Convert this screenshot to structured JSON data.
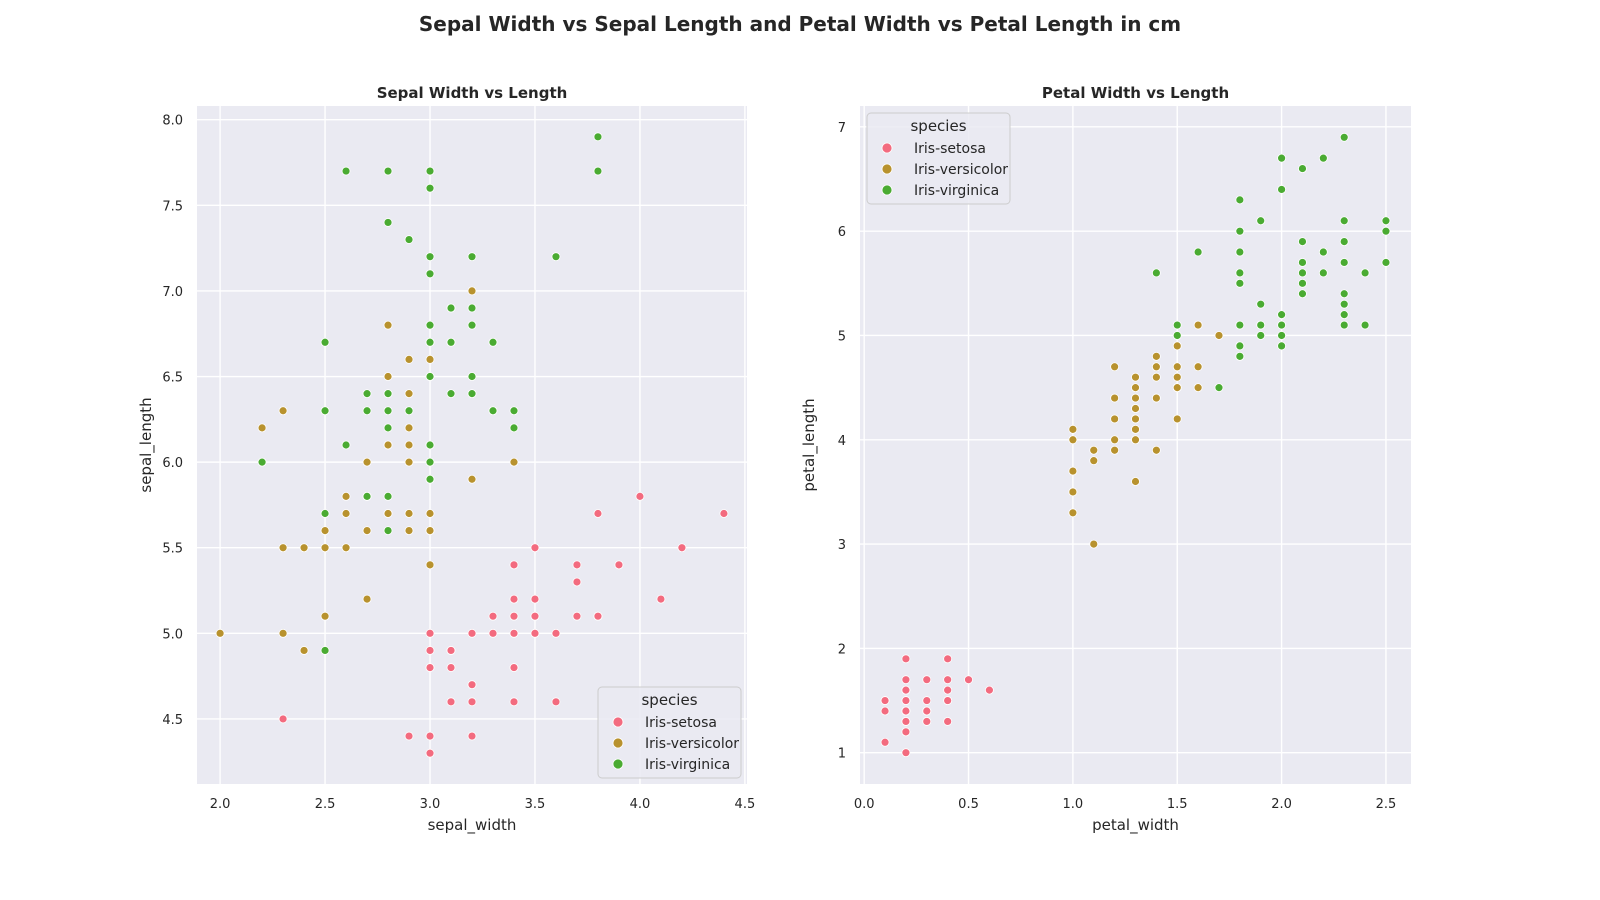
{
  "figure": {
    "title": "Sepal Width vs Sepal Length and Petal Width vs Petal Length in cm"
  },
  "chart_data": [
    {
      "type": "scatter",
      "title": "Sepal Width vs Length",
      "xlabel": "sepal_width",
      "ylabel": "sepal_length",
      "xlim": [
        1.89,
        4.51
      ],
      "ylim": [
        4.12,
        8.08
      ],
      "xticks": [
        2.0,
        2.5,
        3.0,
        3.5,
        4.0,
        4.5
      ],
      "yticks": [
        4.5,
        5.0,
        5.5,
        6.0,
        6.5,
        7.0,
        7.5,
        8.0
      ],
      "tick_decimals": 1,
      "grid": true,
      "legend": {
        "title": "species",
        "placement": "lower-right"
      },
      "series": [
        {
          "name": "Iris-setosa",
          "color": "#f36b7f",
          "x": [
            3.5,
            3.0,
            3.2,
            3.1,
            3.6,
            3.9,
            3.4,
            3.4,
            2.9,
            3.1,
            3.7,
            3.4,
            3.0,
            3.0,
            4.0,
            4.4,
            3.9,
            3.5,
            3.8,
            3.8,
            3.4,
            3.7,
            3.6,
            3.3,
            3.4,
            3.0,
            3.4,
            3.5,
            3.4,
            3.2,
            3.1,
            3.4,
            4.1,
            4.2,
            3.1,
            3.2,
            3.5,
            3.1,
            3.0,
            3.4,
            3.5,
            2.3,
            3.2,
            3.5,
            3.8,
            3.0,
            3.8,
            3.2,
            3.7,
            3.3
          ],
          "y": [
            5.1,
            4.9,
            4.7,
            4.6,
            5.0,
            5.4,
            4.6,
            5.0,
            4.4,
            4.9,
            5.4,
            4.8,
            4.8,
            4.3,
            5.8,
            5.7,
            5.4,
            5.1,
            5.7,
            5.1,
            5.4,
            5.1,
            4.6,
            5.1,
            4.8,
            5.0,
            5.0,
            5.2,
            5.2,
            4.7,
            4.8,
            5.4,
            5.2,
            5.5,
            4.9,
            5.0,
            5.5,
            4.9,
            4.4,
            5.1,
            5.0,
            4.5,
            4.4,
            5.0,
            5.1,
            4.8,
            5.1,
            4.6,
            5.3,
            5.0
          ]
        },
        {
          "name": "Iris-versicolor",
          "color": "#b8922e",
          "x": [
            3.2,
            3.2,
            3.1,
            2.3,
            2.8,
            2.8,
            3.3,
            2.4,
            2.9,
            2.7,
            2.0,
            3.0,
            2.2,
            2.9,
            2.9,
            3.1,
            3.0,
            2.7,
            2.2,
            2.5,
            3.2,
            2.8,
            2.5,
            2.8,
            2.9,
            3.0,
            2.8,
            3.0,
            2.9,
            2.6,
            2.4,
            2.4,
            2.7,
            2.7,
            3.0,
            3.4,
            3.1,
            2.3,
            3.0,
            2.5,
            2.6,
            3.0,
            2.6,
            2.3,
            2.7,
            3.0,
            2.9,
            2.9,
            2.5,
            2.8
          ],
          "y": [
            7.0,
            6.4,
            6.9,
            5.5,
            6.5,
            5.7,
            6.3,
            4.9,
            6.6,
            5.2,
            5.0,
            5.9,
            6.0,
            6.1,
            5.6,
            6.7,
            5.6,
            5.8,
            6.2,
            5.6,
            5.9,
            6.1,
            6.3,
            6.1,
            6.4,
            6.6,
            6.8,
            6.7,
            6.0,
            5.7,
            5.5,
            5.5,
            5.8,
            6.0,
            5.4,
            6.0,
            6.7,
            6.3,
            5.6,
            5.5,
            5.5,
            6.1,
            5.8,
            5.0,
            5.6,
            5.7,
            5.7,
            6.2,
            5.1,
            5.7
          ]
        },
        {
          "name": "Iris-virginica",
          "color": "#4aab32",
          "x": [
            3.3,
            2.7,
            3.0,
            2.9,
            3.0,
            3.0,
            2.5,
            2.9,
            2.5,
            3.6,
            3.2,
            2.7,
            3.0,
            2.5,
            2.8,
            3.2,
            3.0,
            3.8,
            2.6,
            2.2,
            3.2,
            2.8,
            2.8,
            2.7,
            3.3,
            3.2,
            2.8,
            3.0,
            2.8,
            3.0,
            2.8,
            3.8,
            2.8,
            2.8,
            2.6,
            3.0,
            3.4,
            3.1,
            3.0,
            3.1,
            3.1,
            3.1,
            2.7,
            3.2,
            3.3,
            3.0,
            2.5,
            3.0,
            3.4,
            3.0
          ],
          "y": [
            6.3,
            5.8,
            7.1,
            6.3,
            6.5,
            7.6,
            4.9,
            7.3,
            6.7,
            7.2,
            6.5,
            6.4,
            6.8,
            5.7,
            5.8,
            6.4,
            6.5,
            7.7,
            7.7,
            6.0,
            6.9,
            5.6,
            7.7,
            6.3,
            6.7,
            7.2,
            6.2,
            6.1,
            6.4,
            7.2,
            7.4,
            7.9,
            6.4,
            6.3,
            6.1,
            7.7,
            6.3,
            6.4,
            6.0,
            6.9,
            6.7,
            6.9,
            5.8,
            6.8,
            6.7,
            6.7,
            6.3,
            6.5,
            6.2,
            5.9
          ]
        }
      ]
    },
    {
      "type": "scatter",
      "title": "Petal Width vs Length",
      "xlabel": "petal_width",
      "ylabel": "petal_length",
      "xlim": [
        -0.02,
        2.62
      ],
      "ylim": [
        0.7,
        7.2
      ],
      "xticks": [
        0.0,
        0.5,
        1.0,
        1.5,
        2.0,
        2.5
      ],
      "yticks": [
        1,
        2,
        3,
        4,
        5,
        6,
        7
      ],
      "tick_decimals": [
        1,
        0
      ],
      "grid": true,
      "legend": {
        "title": "species",
        "placement": "upper-left"
      },
      "series": [
        {
          "name": "Iris-setosa",
          "color": "#f36b7f",
          "x": [
            0.2,
            0.2,
            0.2,
            0.2,
            0.2,
            0.4,
            0.3,
            0.2,
            0.2,
            0.1,
            0.2,
            0.2,
            0.1,
            0.1,
            0.2,
            0.4,
            0.4,
            0.3,
            0.3,
            0.3,
            0.2,
            0.4,
            0.2,
            0.5,
            0.2,
            0.2,
            0.4,
            0.2,
            0.2,
            0.2,
            0.2,
            0.4,
            0.1,
            0.2,
            0.1,
            0.2,
            0.2,
            0.1,
            0.2,
            0.2,
            0.3,
            0.3,
            0.2,
            0.6,
            0.4,
            0.3,
            0.2,
            0.2,
            0.2,
            0.2
          ],
          "y": [
            1.4,
            1.4,
            1.3,
            1.5,
            1.4,
            1.7,
            1.4,
            1.5,
            1.4,
            1.5,
            1.5,
            1.6,
            1.4,
            1.1,
            1.2,
            1.5,
            1.3,
            1.4,
            1.7,
            1.5,
            1.7,
            1.5,
            1.0,
            1.7,
            1.9,
            1.6,
            1.6,
            1.5,
            1.4,
            1.6,
            1.6,
            1.5,
            1.5,
            1.4,
            1.5,
            1.2,
            1.3,
            1.5,
            1.3,
            1.5,
            1.3,
            1.3,
            1.3,
            1.6,
            1.9,
            1.4,
            1.6,
            1.4,
            1.5,
            1.4
          ]
        },
        {
          "name": "Iris-versicolor",
          "color": "#b8922e",
          "x": [
            1.4,
            1.5,
            1.5,
            1.3,
            1.5,
            1.3,
            1.6,
            1.0,
            1.3,
            1.4,
            1.0,
            1.5,
            1.0,
            1.4,
            1.3,
            1.4,
            1.5,
            1.0,
            1.5,
            1.1,
            1.8,
            1.3,
            1.5,
            1.2,
            1.3,
            1.4,
            1.4,
            1.7,
            1.5,
            1.0,
            1.1,
            1.0,
            1.2,
            1.6,
            1.5,
            1.6,
            1.5,
            1.3,
            1.3,
            1.3,
            1.2,
            1.4,
            1.2,
            1.0,
            1.3,
            1.2,
            1.3,
            1.3,
            1.1,
            1.3
          ],
          "y": [
            4.7,
            4.5,
            4.9,
            4.0,
            4.6,
            4.5,
            4.7,
            3.3,
            4.6,
            3.9,
            3.5,
            4.2,
            4.0,
            4.7,
            3.6,
            4.4,
            4.5,
            4.1,
            4.5,
            3.9,
            4.8,
            4.0,
            4.9,
            4.7,
            4.3,
            4.4,
            4.8,
            5.0,
            4.5,
            3.5,
            3.8,
            3.7,
            3.9,
            5.1,
            4.5,
            4.5,
            4.7,
            4.4,
            4.1,
            4.0,
            4.4,
            4.6,
            4.0,
            3.3,
            4.2,
            4.2,
            4.2,
            4.3,
            3.0,
            4.1
          ]
        },
        {
          "name": "Iris-virginica",
          "color": "#4aab32",
          "x": [
            2.5,
            1.9,
            2.1,
            1.8,
            2.2,
            2.1,
            1.7,
            1.8,
            1.8,
            2.5,
            2.0,
            1.9,
            2.1,
            2.0,
            2.4,
            2.3,
            1.8,
            2.2,
            2.3,
            1.5,
            2.3,
            2.0,
            2.0,
            1.8,
            2.1,
            1.8,
            1.8,
            1.8,
            2.1,
            1.6,
            1.9,
            2.0,
            2.2,
            1.5,
            1.4,
            2.3,
            2.4,
            1.8,
            1.8,
            2.1,
            2.4,
            2.3,
            1.9,
            2.3,
            2.5,
            2.3,
            1.9,
            2.0,
            2.3,
            1.8
          ],
          "y": [
            6.0,
            5.1,
            5.9,
            5.6,
            5.8,
            6.6,
            4.5,
            6.3,
            5.8,
            6.1,
            5.1,
            5.3,
            5.5,
            5.0,
            5.1,
            5.3,
            5.5,
            6.7,
            6.9,
            5.0,
            5.7,
            4.9,
            6.7,
            4.9,
            5.7,
            6.0,
            4.8,
            4.9,
            5.6,
            5.8,
            6.1,
            6.4,
            5.6,
            5.1,
            5.6,
            6.1,
            5.6,
            5.5,
            4.8,
            5.4,
            5.6,
            5.1,
            5.1,
            5.9,
            5.7,
            5.2,
            5.0,
            5.2,
            5.4,
            5.1
          ]
        }
      ]
    }
  ]
}
